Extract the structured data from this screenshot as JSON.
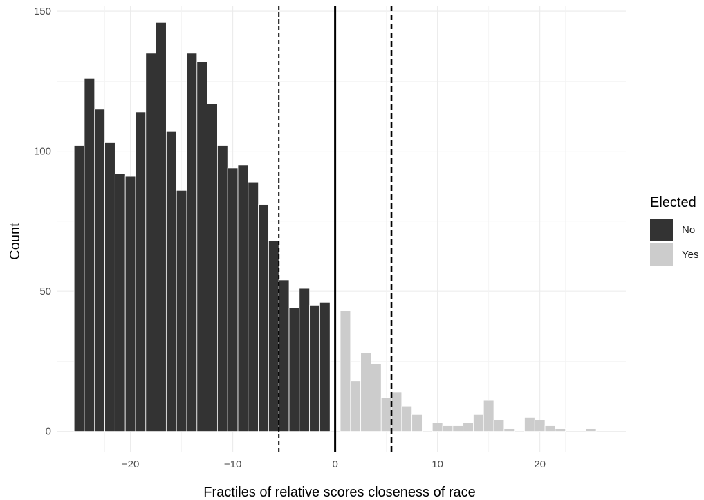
{
  "chart_data": {
    "type": "bar",
    "xlabel": "Fractiles of relative scores closeness of race",
    "ylabel": "Count",
    "xlim": [
      -27.2,
      28.4
    ],
    "ylim": [
      -7.5,
      152
    ],
    "x_ticks": [
      -20,
      -10,
      0,
      10,
      20
    ],
    "x_tick_labels": [
      "−20",
      "−10",
      "0",
      "10",
      "20"
    ],
    "y_ticks": [
      0,
      50,
      100,
      150
    ],
    "y_tick_labels": [
      "0",
      "50",
      "100",
      "150"
    ],
    "bin_width": 1,
    "grid": true,
    "legend_position": "right",
    "reference_lines": [
      {
        "x": 0,
        "style": "solid"
      },
      {
        "x": -5.5,
        "style": "dashed"
      },
      {
        "x": 5.5,
        "style": "dashed"
      }
    ],
    "series": [
      {
        "name": "No",
        "color": "#333333",
        "x": [
          -25,
          -24,
          -23,
          -22,
          -21,
          -20,
          -19,
          -18,
          -17,
          -16,
          -15,
          -14,
          -13,
          -12,
          -11,
          -10,
          -9,
          -8,
          -7,
          -6,
          -5,
          -4,
          -3,
          -2,
          -1
        ],
        "values": [
          102,
          126,
          115,
          103,
          92,
          91,
          114,
          135,
          146,
          107,
          86,
          135,
          132,
          117,
          102,
          94,
          95,
          89,
          81,
          68,
          54,
          44,
          51,
          45,
          46
        ]
      },
      {
        "name": "Yes",
        "color": "#cccccc",
        "x": [
          1,
          2,
          3,
          4,
          5,
          6,
          7,
          8,
          9,
          10,
          11,
          12,
          13,
          14,
          15,
          16,
          17,
          18,
          19,
          20,
          21,
          22,
          23,
          24,
          25
        ],
        "values": [
          43,
          18,
          28,
          24,
          12,
          14,
          9,
          6,
          0,
          3,
          2,
          2,
          3,
          6,
          11,
          4,
          1,
          0,
          5,
          4,
          2,
          1,
          0,
          0,
          1
        ]
      }
    ],
    "legend": {
      "title": "Elected",
      "items": [
        {
          "label": "No",
          "color": "#333333"
        },
        {
          "label": "Yes",
          "color": "#cccccc"
        }
      ]
    }
  }
}
